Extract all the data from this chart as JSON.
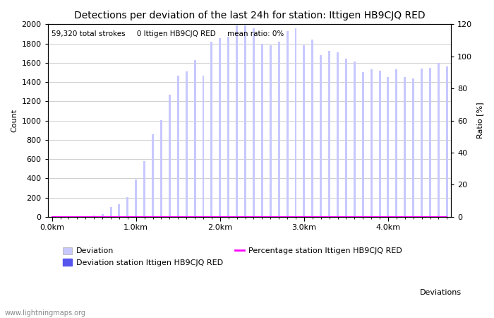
{
  "title": "Detections per deviation of the last 24h for station: Ittigen HB9CJQ RED",
  "xlabel": "Deviations",
  "ylabel_left": "Count",
  "ylabel_right": "Ratio [%]",
  "annotation": "59,320 total strokes     0 Ittigen HB9CJQ RED     mean ratio: 0%",
  "watermark": "www.lightningmaps.org",
  "ylim_left": [
    0,
    2000
  ],
  "ylim_right": [
    0,
    120
  ],
  "yticks_left": [
    0,
    200,
    400,
    600,
    800,
    1000,
    1200,
    1400,
    1600,
    1800,
    2000
  ],
  "yticks_right": [
    0,
    20,
    40,
    60,
    80,
    100,
    120
  ],
  "xtick_labels": [
    "0.0km",
    "1.0km",
    "2.0km",
    "3.0km",
    "4.0km"
  ],
  "xtick_positions": [
    0,
    10,
    20,
    30,
    40
  ],
  "bar_width": 0.25,
  "deviation_values": [
    2,
    5,
    5,
    8,
    10,
    12,
    30,
    100,
    130,
    205,
    390,
    580,
    860,
    1005,
    1270,
    1470,
    1510,
    1625,
    1465,
    1820,
    1855,
    1870,
    1990,
    1985,
    1960,
    1800,
    1785,
    1820,
    1930,
    1960,
    1785,
    1840,
    1680,
    1720,
    1710,
    1640,
    1610,
    1500,
    1530,
    1520,
    1450,
    1530,
    1450,
    1440,
    1540,
    1550,
    1600,
    1560
  ],
  "station_values": [
    0,
    0,
    0,
    0,
    0,
    0,
    0,
    0,
    0,
    0,
    0,
    0,
    0,
    0,
    0,
    0,
    0,
    0,
    0,
    0,
    0,
    0,
    0,
    0,
    0,
    0,
    0,
    0,
    0,
    0,
    0,
    0,
    0,
    0,
    0,
    0,
    0,
    0,
    0,
    0,
    0,
    0,
    0,
    0,
    0,
    0,
    0,
    0
  ],
  "percentage_values": [
    0,
    0,
    0,
    0,
    0,
    0,
    0,
    0,
    0,
    0,
    0,
    0,
    0,
    0,
    0,
    0,
    0,
    0,
    0,
    0,
    0,
    0,
    0,
    0,
    0,
    0,
    0,
    0,
    0,
    0,
    0,
    0,
    0,
    0,
    0,
    0,
    0,
    0,
    0,
    0,
    0,
    0,
    0,
    0,
    0,
    0,
    0,
    0
  ],
  "bar_color_light": "#c8c8ff",
  "bar_color_dark": "#5555ee",
  "line_color": "#ff00ff",
  "background_color": "#ffffff",
  "grid_color": "#bbbbbb",
  "title_fontsize": 10,
  "label_fontsize": 8,
  "tick_fontsize": 8,
  "annotation_fontsize": 7.5
}
